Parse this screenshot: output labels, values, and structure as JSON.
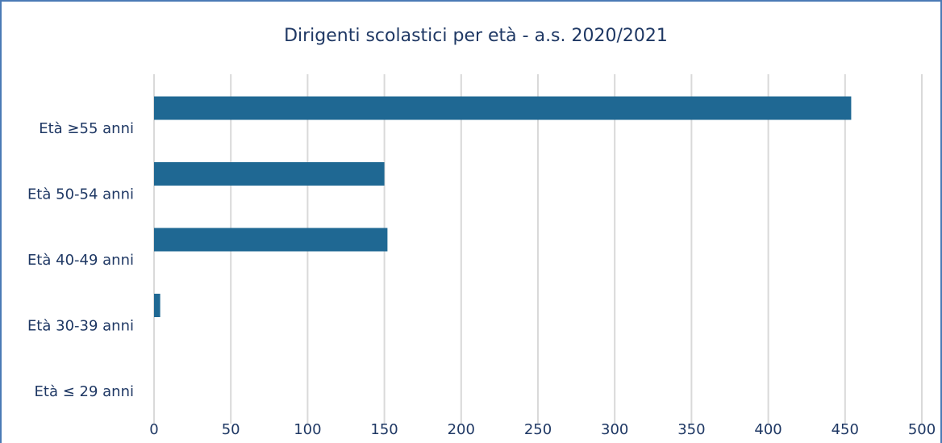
{
  "chart_data": {
    "type": "bar",
    "orientation": "horizontal",
    "title": "Dirigenti scolastici per età - a.s. 2020/2021",
    "categories": [
      "Età ≥55 anni",
      "Età 50-54 anni",
      "Età 40-49 anni",
      "Età 30-39 anni",
      "Età ≤ 29 anni"
    ],
    "values": [
      454,
      150,
      152,
      4,
      0
    ],
    "color": "#1f6893",
    "xlim": [
      0,
      500
    ],
    "xticks": [
      0,
      50,
      100,
      150,
      200,
      250,
      300,
      350,
      400,
      450,
      500
    ],
    "grid": true
  }
}
